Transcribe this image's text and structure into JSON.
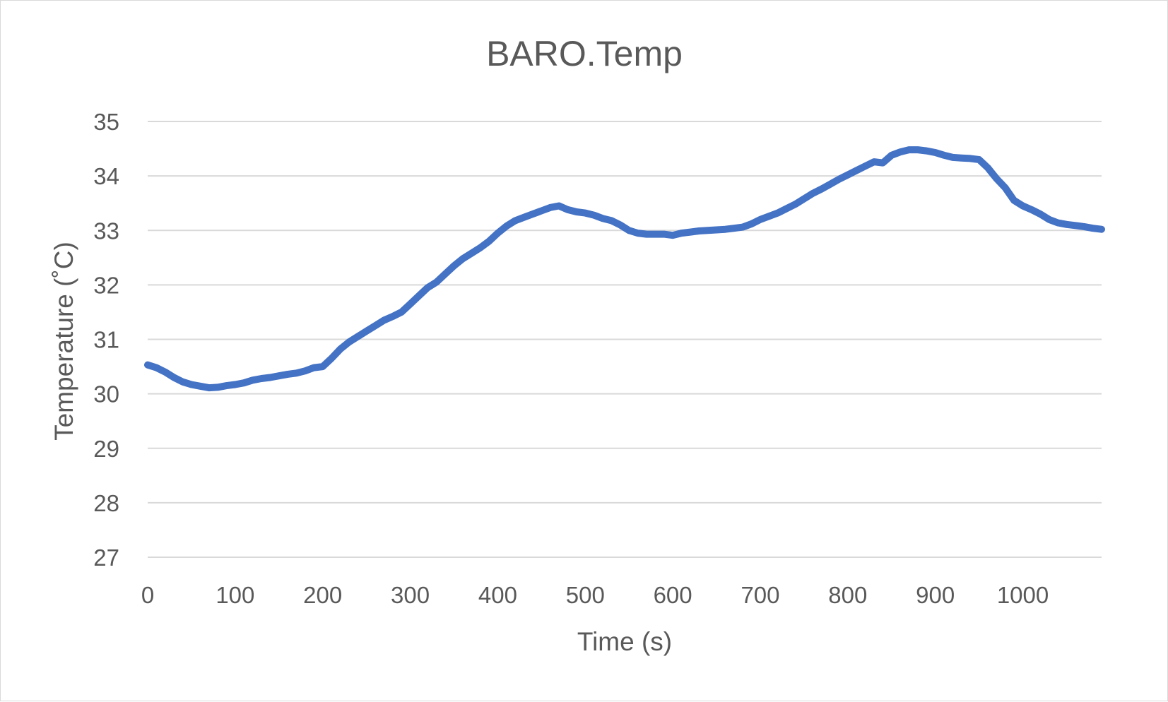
{
  "chart_data": {
    "type": "line",
    "title": "BARO.Temp",
    "xlabel": "Time (s)",
    "ylabel": "Temperature (˚C)",
    "xlim": [
      0,
      1090
    ],
    "ylim": [
      27,
      35
    ],
    "x_ticks": [
      0,
      100,
      200,
      300,
      400,
      500,
      600,
      700,
      800,
      900,
      1000
    ],
    "x_tick_labels": [
      "0",
      "100",
      "200",
      "300",
      "400",
      "500",
      "600",
      "700",
      "800",
      "900",
      "1000"
    ],
    "y_ticks": [
      27,
      28,
      29,
      30,
      31,
      32,
      33,
      34,
      35
    ],
    "y_tick_labels": [
      "27",
      "28",
      "29",
      "30",
      "31",
      "32",
      "33",
      "34",
      "35"
    ],
    "grid": true,
    "legend": "none",
    "colors": {
      "series": "#4472c4",
      "grid": "#d9d9d9",
      "text": "#595959"
    },
    "series": [
      {
        "x": [
          0,
          10,
          20,
          30,
          40,
          50,
          60,
          70,
          80,
          90,
          100,
          110,
          120,
          130,
          140,
          150,
          160,
          170,
          180,
          190,
          200,
          210,
          220,
          230,
          240,
          250,
          260,
          270,
          280,
          290,
          300,
          310,
          320,
          330,
          340,
          350,
          360,
          370,
          380,
          390,
          400,
          410,
          420,
          430,
          440,
          450,
          460,
          470,
          480,
          490,
          500,
          510,
          520,
          530,
          540,
          550,
          560,
          570,
          580,
          590,
          600,
          610,
          620,
          630,
          640,
          650,
          660,
          670,
          680,
          690,
          700,
          710,
          720,
          730,
          740,
          750,
          760,
          770,
          780,
          790,
          800,
          810,
          820,
          830,
          840,
          850,
          860,
          870,
          880,
          890,
          900,
          910,
          920,
          930,
          940,
          950,
          960,
          970,
          980,
          990,
          1000,
          1010,
          1020,
          1030,
          1040,
          1050,
          1060,
          1070,
          1080,
          1090
        ],
        "values": [
          30.53,
          30.48,
          30.4,
          30.3,
          30.22,
          30.17,
          30.14,
          30.11,
          30.12,
          30.15,
          30.17,
          30.2,
          30.25,
          30.28,
          30.3,
          30.33,
          30.36,
          30.38,
          30.42,
          30.48,
          30.5,
          30.65,
          30.82,
          30.95,
          31.05,
          31.15,
          31.25,
          31.35,
          31.42,
          31.5,
          31.65,
          31.8,
          31.95,
          32.05,
          32.2,
          32.35,
          32.48,
          32.58,
          32.68,
          32.8,
          32.95,
          33.08,
          33.18,
          33.24,
          33.3,
          33.36,
          33.42,
          33.45,
          33.38,
          33.34,
          33.32,
          33.28,
          33.22,
          33.18,
          33.1,
          33.0,
          32.95,
          32.93,
          32.93,
          32.93,
          32.91,
          32.95,
          32.97,
          32.99,
          33.0,
          33.01,
          33.02,
          33.04,
          33.06,
          33.12,
          33.2,
          33.26,
          33.32,
          33.4,
          33.48,
          33.58,
          33.68,
          33.76,
          33.85,
          33.94,
          34.02,
          34.1,
          34.18,
          34.26,
          34.24,
          34.38,
          34.44,
          34.48,
          34.48,
          34.46,
          34.43,
          34.38,
          34.34,
          34.33,
          34.32,
          34.3,
          34.15,
          33.95,
          33.78,
          33.55,
          33.45,
          33.38,
          33.3,
          33.2,
          33.14,
          33.11,
          33.09,
          33.07,
          33.04,
          33.02
        ]
      }
    ]
  }
}
